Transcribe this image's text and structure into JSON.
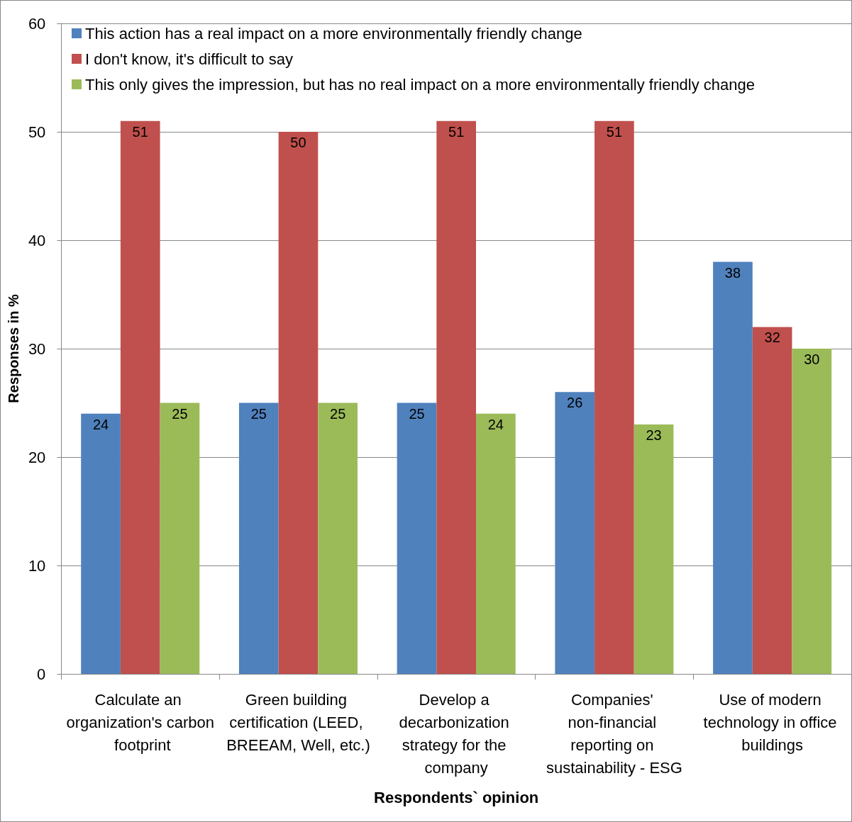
{
  "chart_data": {
    "type": "bar",
    "xlabel": "Respondents` opinion",
    "ylabel": "Responses in %",
    "categories": [
      "Calculate an organization's carbon footprint",
      "Green building certification (LEED, BREEAM, Well, etc.)",
      "Develop a decarbonization strategy for the company",
      "Companies' non-financial reporting on sustainability - ESG",
      "Use of modern technology in office buildings"
    ],
    "series": [
      {
        "name": "This action has a real impact on a more environmentally friendly change",
        "color": "#4f81bd",
        "values": [
          24,
          25,
          25,
          26,
          38
        ]
      },
      {
        "name": "I don't know, it's difficult to say",
        "color": "#c0504d",
        "values": [
          51,
          50,
          51,
          51,
          32
        ]
      },
      {
        "name": "This only gives the impression, but has no real impact on a more environmentally friendly change",
        "color": "#9bbb59",
        "values": [
          25,
          25,
          24,
          23,
          30
        ]
      }
    ],
    "ylim": [
      0,
      60
    ],
    "yticks": [
      0,
      10,
      20,
      30,
      40,
      50,
      60
    ],
    "grid": "y",
    "legend": "top",
    "data_labels": true
  }
}
